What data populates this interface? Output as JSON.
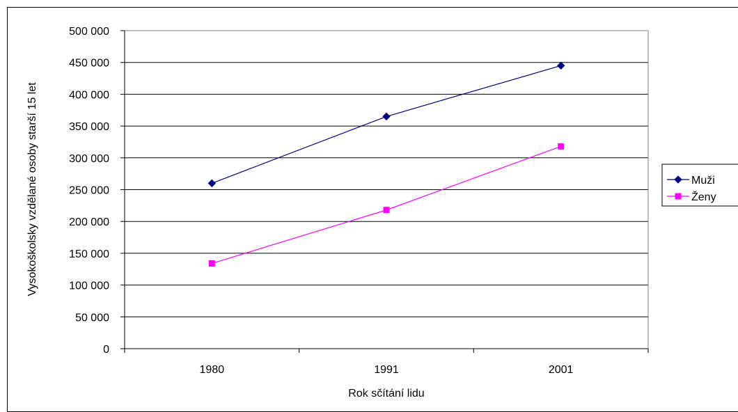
{
  "chart_data": {
    "type": "line",
    "title": "",
    "xlabel": "Rok sčítání lidu",
    "ylabel": "Vysokoškolsky vzdělané osoby starší 15 let",
    "categories": [
      "1980",
      "1991",
      "2001"
    ],
    "ylim": [
      0,
      500000
    ],
    "ytick_values": [
      0,
      50000,
      100000,
      150000,
      200000,
      250000,
      300000,
      350000,
      400000,
      450000,
      500000
    ],
    "ytick_labels": [
      "0",
      "50 000",
      "100 000",
      "150 000",
      "200 000",
      "250 000",
      "300 000",
      "350 000",
      "400 000",
      "450 000",
      "500 000"
    ],
    "grid": true,
    "legend_position": "right",
    "series": [
      {
        "name": "Muži",
        "values": [
          260000,
          365000,
          445000
        ],
        "color": "#000080",
        "marker": "diamond"
      },
      {
        "name": "Ženy",
        "values": [
          134000,
          218000,
          318000
        ],
        "color": "#ff00ff",
        "marker": "square"
      }
    ]
  }
}
